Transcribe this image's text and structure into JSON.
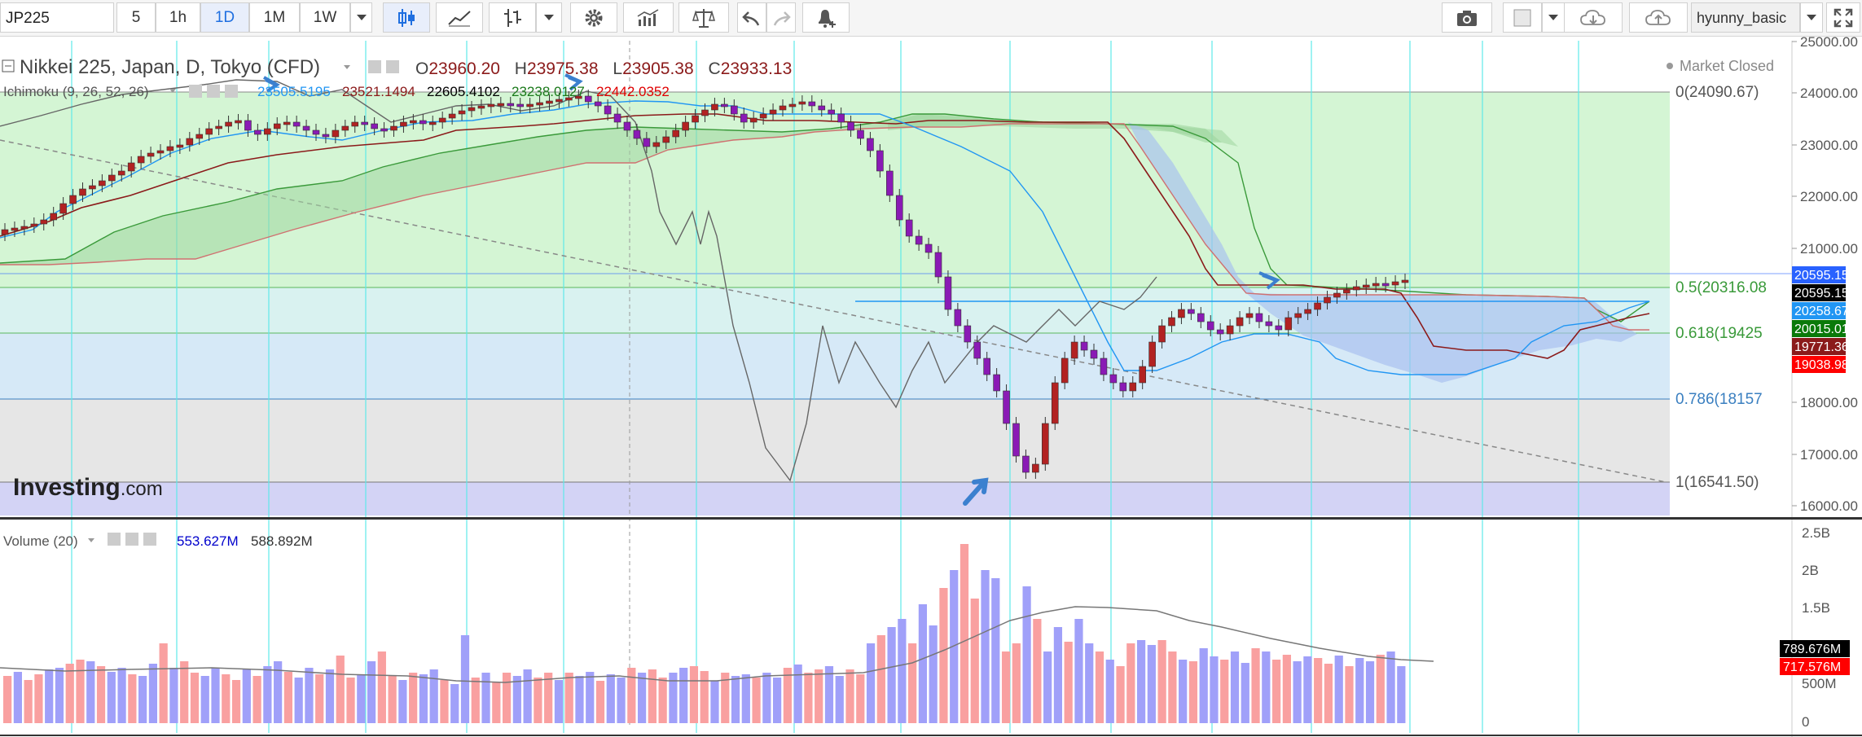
{
  "toolbar": {
    "symbol": "JP225",
    "intervals": [
      "5",
      "1h",
      "1D",
      "1M",
      "1W"
    ],
    "active_interval": "1D",
    "username": "hyunny_basic",
    "icons": [
      "dropdown-icon",
      "candles-icon",
      "line-chart-icon",
      "bars-icon",
      "dropdown-icon",
      "gear-icon",
      "indicators-icon",
      "compare-icon",
      "undo-icon",
      "redo-icon",
      "alert-icon",
      "camera-icon",
      "color-swatch-icon",
      "dropdown-icon",
      "cloud-download-icon",
      "cloud-upload-icon",
      "dropdown-icon",
      "fullscreen-icon"
    ]
  },
  "legend": {
    "title": "Nikkei 225, Japan, D, Tokyo (CFD)",
    "open_label": "O",
    "open": "23960.20",
    "high_label": "H",
    "high": "23975.38",
    "low_label": "L",
    "low": "23905.38",
    "close_label": "C",
    "close": "23933.13",
    "ichimoku_label": "Ichimoku (9, 26, 52, 26)",
    "ichimoku_values": [
      "23505.5195",
      "23521.1494",
      "22605.4102",
      "23238.0127",
      "22442.0352"
    ],
    "ichimoku_colors": [
      "#2196f3",
      "#8b1a1a",
      "#000000",
      "#1b7a1b",
      "#e00000"
    ],
    "market_status": "Market Closed",
    "watermark": "Investing",
    "watermark_suffix": ".com",
    "volume_label": "Volume (20)",
    "volume_values": [
      "553.627M",
      "588.892M"
    ],
    "volume_colors": [
      "#0000cc",
      "#333333"
    ]
  },
  "fib": [
    {
      "label": "0(24090.67)",
      "color": "#555555"
    },
    {
      "label": "0.5(20316.08",
      "color": "#3a9a3a"
    },
    {
      "label": "0.618(19425",
      "color": "#3a9a3a"
    },
    {
      "label": "0.786(18157",
      "color": "#3a7fc0"
    },
    {
      "label": "1(16541.50)",
      "color": "#555555"
    }
  ],
  "price_axis": [
    "25000.00",
    "24000.00",
    "23000.00",
    "22000.00",
    "21000.00",
    "18000.00",
    "17000.00",
    "16000.00"
  ],
  "price_badges": [
    {
      "text": "20595.15",
      "bg": "#2962ff",
      "fg": "#ffffff"
    },
    {
      "text": "20595.15",
      "bg": "#000000",
      "fg": "#ffffff"
    },
    {
      "text": "20258.67",
      "bg": "#2196f3",
      "fg": "#ffffff"
    },
    {
      "text": "20015.01",
      "bg": "#0a7a0a",
      "fg": "#ffffff"
    },
    {
      "text": "19771.36",
      "bg": "#8b1a1a",
      "fg": "#ffffff"
    },
    {
      "text": "19038.98",
      "bg": "#ff0000",
      "fg": "#ffffff"
    }
  ],
  "volume_axis": [
    "2.5B",
    "2B",
    "1.5B",
    "500M",
    "0"
  ],
  "volume_badges": [
    {
      "text": "789.676M",
      "bg": "#000000",
      "fg": "#ffffff"
    },
    {
      "text": "717.576M",
      "bg": "#ff0000",
      "fg": "#ffffff"
    }
  ],
  "colors": {
    "up_candle": "#b22222",
    "down_candle": "#8a1ab5",
    "vol_up": "#f9a0a0",
    "vol_down": "#a0a0f9",
    "cloud_bull": "#9ed69e",
    "cloud_bear": "#a6bef0",
    "cyan_grid": "#5fe8e8"
  }
}
